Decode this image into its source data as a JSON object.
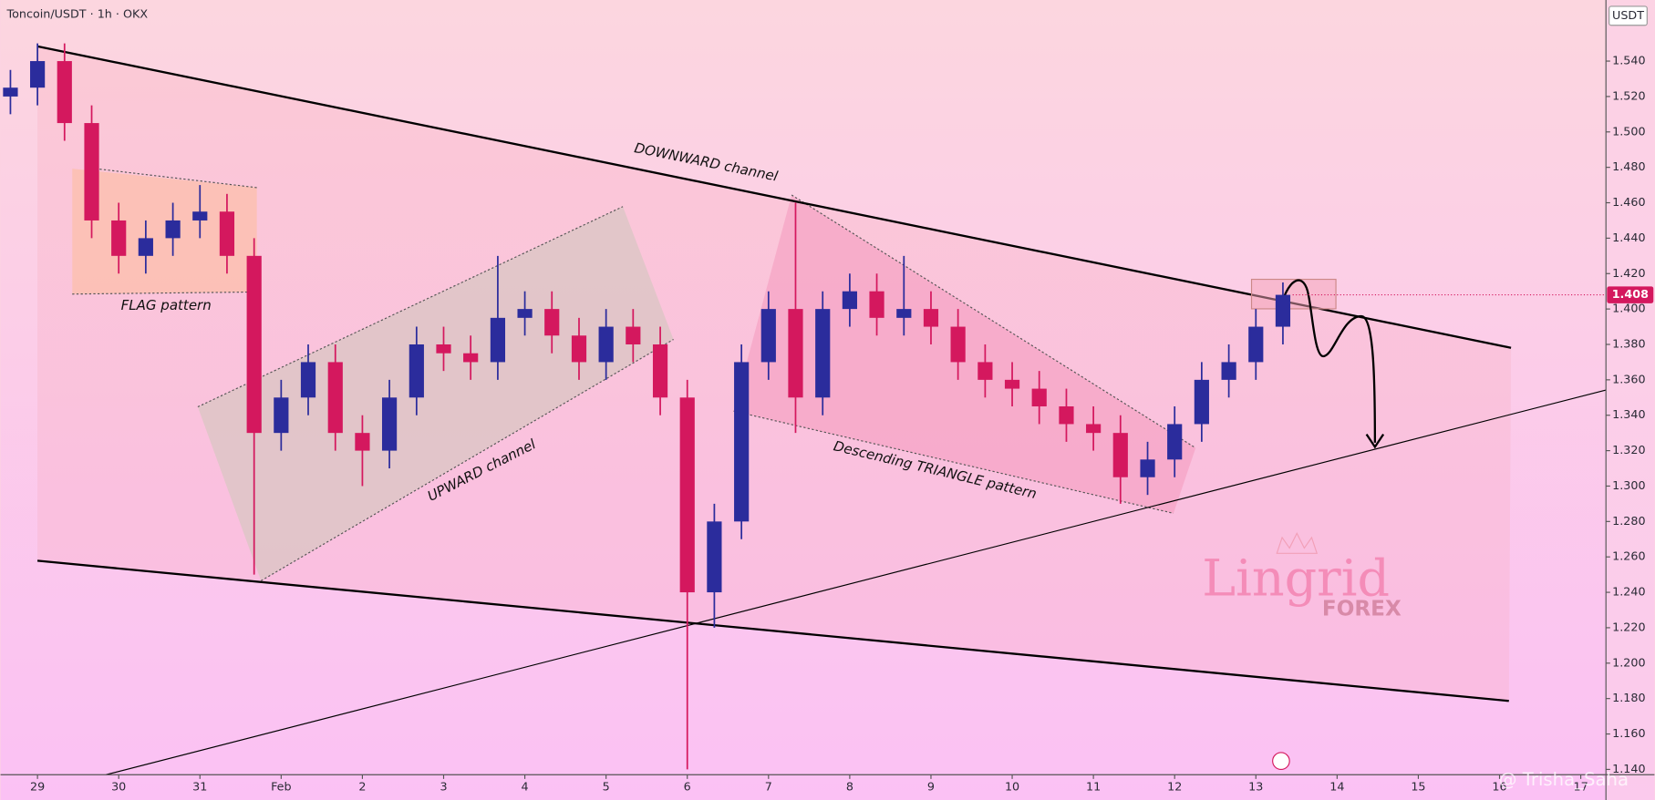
{
  "chart_data": {
    "type": "candlestick",
    "title": "Toncoin/USDT · 1h · OKX",
    "currency": "USDT",
    "price_label": 1.408,
    "up_color": "#2b2c9c",
    "down_color": "#d4185e",
    "xlim": [
      28.545,
      48.31
    ],
    "xticks": [
      {
        "value": 29,
        "label": "29"
      },
      {
        "value": 30,
        "label": "30"
      },
      {
        "value": 31,
        "label": "31"
      },
      {
        "value": 32,
        "label": "Feb"
      },
      {
        "value": 33,
        "label": "2"
      },
      {
        "value": 34,
        "label": "3"
      },
      {
        "value": 35,
        "label": "4"
      },
      {
        "value": 36,
        "label": "5"
      },
      {
        "value": 37,
        "label": "6"
      },
      {
        "value": 38,
        "label": "7"
      },
      {
        "value": 39,
        "label": "8"
      },
      {
        "value": 40,
        "label": "9"
      },
      {
        "value": 41,
        "label": "10"
      },
      {
        "value": 42,
        "label": "11"
      },
      {
        "value": 43,
        "label": "12"
      },
      {
        "value": 44,
        "label": "13"
      },
      {
        "value": 45,
        "label": "14"
      },
      {
        "value": 46,
        "label": "15"
      },
      {
        "value": 47,
        "label": "16"
      },
      {
        "value": 48,
        "label": "17"
      }
    ],
    "ylim": [
      1.137,
      1.5745
    ],
    "yticks": [
      {
        "value": 1.14,
        "label": "1.140"
      },
      {
        "value": 1.16,
        "label": "1.160"
      },
      {
        "value": 1.18,
        "label": "1.180"
      },
      {
        "value": 1.2,
        "label": "1.200"
      },
      {
        "value": 1.22,
        "label": "1.220"
      },
      {
        "value": 1.24,
        "label": "1.240"
      },
      {
        "value": 1.26,
        "label": "1.260"
      },
      {
        "value": 1.28,
        "label": "1.280"
      },
      {
        "value": 1.3,
        "label": "1.300"
      },
      {
        "value": 1.32,
        "label": "1.320"
      },
      {
        "value": 1.34,
        "label": "1.340"
      },
      {
        "value": 1.36,
        "label": "1.360"
      },
      {
        "value": 1.38,
        "label": "1.380"
      },
      {
        "value": 1.4,
        "label": "1.400"
      },
      {
        "value": 1.42,
        "label": "1.420"
      },
      {
        "value": 1.44,
        "label": "1.440"
      },
      {
        "value": 1.46,
        "label": "1.460"
      },
      {
        "value": 1.48,
        "label": "1.480"
      },
      {
        "value": 1.5,
        "label": "1.500"
      },
      {
        "value": 1.52,
        "label": "1.520"
      },
      {
        "value": 1.54,
        "label": "1.540"
      }
    ],
    "x": [
      28.667,
      29,
      29.333,
      29.667,
      30,
      30.333,
      30.667,
      31,
      31.333,
      31.667,
      32,
      32.333,
      32.667,
      33,
      33.333,
      33.667,
      34,
      34.333,
      34.667,
      35,
      35.333,
      35.667,
      36,
      36.333,
      36.667,
      37,
      37.333,
      37.667,
      38,
      38.333,
      38.667,
      39,
      39.333,
      39.667,
      40,
      40.333,
      40.667,
      41,
      41.333,
      41.667,
      42,
      42.333,
      42.667,
      43,
      43.333,
      43.667,
      44,
      44.333
    ],
    "open": [
      1.52,
      1.525,
      1.54,
      1.505,
      1.45,
      1.43,
      1.44,
      1.45,
      1.455,
      1.43,
      1.33,
      1.35,
      1.37,
      1.33,
      1.32,
      1.35,
      1.38,
      1.375,
      1.37,
      1.395,
      1.4,
      1.385,
      1.37,
      1.39,
      1.38,
      1.35,
      1.24,
      1.28,
      1.37,
      1.4,
      1.35,
      1.4,
      1.41,
      1.395,
      1.4,
      1.39,
      1.37,
      1.36,
      1.355,
      1.345,
      1.335,
      1.33,
      1.305,
      1.315,
      1.335,
      1.36,
      1.37,
      1.39
    ],
    "high": [
      1.535,
      1.55,
      1.55,
      1.515,
      1.46,
      1.45,
      1.46,
      1.47,
      1.465,
      1.44,
      1.36,
      1.38,
      1.38,
      1.34,
      1.36,
      1.39,
      1.39,
      1.385,
      1.43,
      1.41,
      1.41,
      1.395,
      1.4,
      1.4,
      1.39,
      1.36,
      1.29,
      1.38,
      1.41,
      1.46,
      1.41,
      1.42,
      1.42,
      1.43,
      1.41,
      1.4,
      1.38,
      1.37,
      1.365,
      1.355,
      1.345,
      1.34,
      1.325,
      1.345,
      1.37,
      1.38,
      1.4,
      1.415
    ],
    "low": [
      1.51,
      1.515,
      1.495,
      1.44,
      1.42,
      1.42,
      1.43,
      1.44,
      1.42,
      1.25,
      1.32,
      1.34,
      1.32,
      1.3,
      1.31,
      1.34,
      1.365,
      1.36,
      1.36,
      1.385,
      1.375,
      1.36,
      1.36,
      1.37,
      1.34,
      1.14,
      1.22,
      1.27,
      1.36,
      1.33,
      1.34,
      1.39,
      1.385,
      1.385,
      1.38,
      1.36,
      1.35,
      1.345,
      1.335,
      1.325,
      1.32,
      1.29,
      1.295,
      1.305,
      1.325,
      1.35,
      1.36,
      1.38
    ],
    "close": [
      1.525,
      1.54,
      1.505,
      1.45,
      1.43,
      1.44,
      1.45,
      1.455,
      1.43,
      1.33,
      1.35,
      1.37,
      1.33,
      1.32,
      1.35,
      1.38,
      1.375,
      1.37,
      1.395,
      1.4,
      1.385,
      1.37,
      1.39,
      1.38,
      1.35,
      1.24,
      1.28,
      1.37,
      1.4,
      1.35,
      1.4,
      1.41,
      1.395,
      1.4,
      1.39,
      1.37,
      1.36,
      1.355,
      1.345,
      1.335,
      1.33,
      1.305,
      1.315,
      1.335,
      1.36,
      1.37,
      1.39,
      1.408
    ],
    "annotations": [
      "DOWNWARD channel",
      "FLAG pattern",
      "UPWARD channel",
      "Descending TRIANGLE pattern"
    ],
    "watermark": [
      "Lingrid",
      "FOREX",
      "@ Trisha_Saha"
    ]
  }
}
